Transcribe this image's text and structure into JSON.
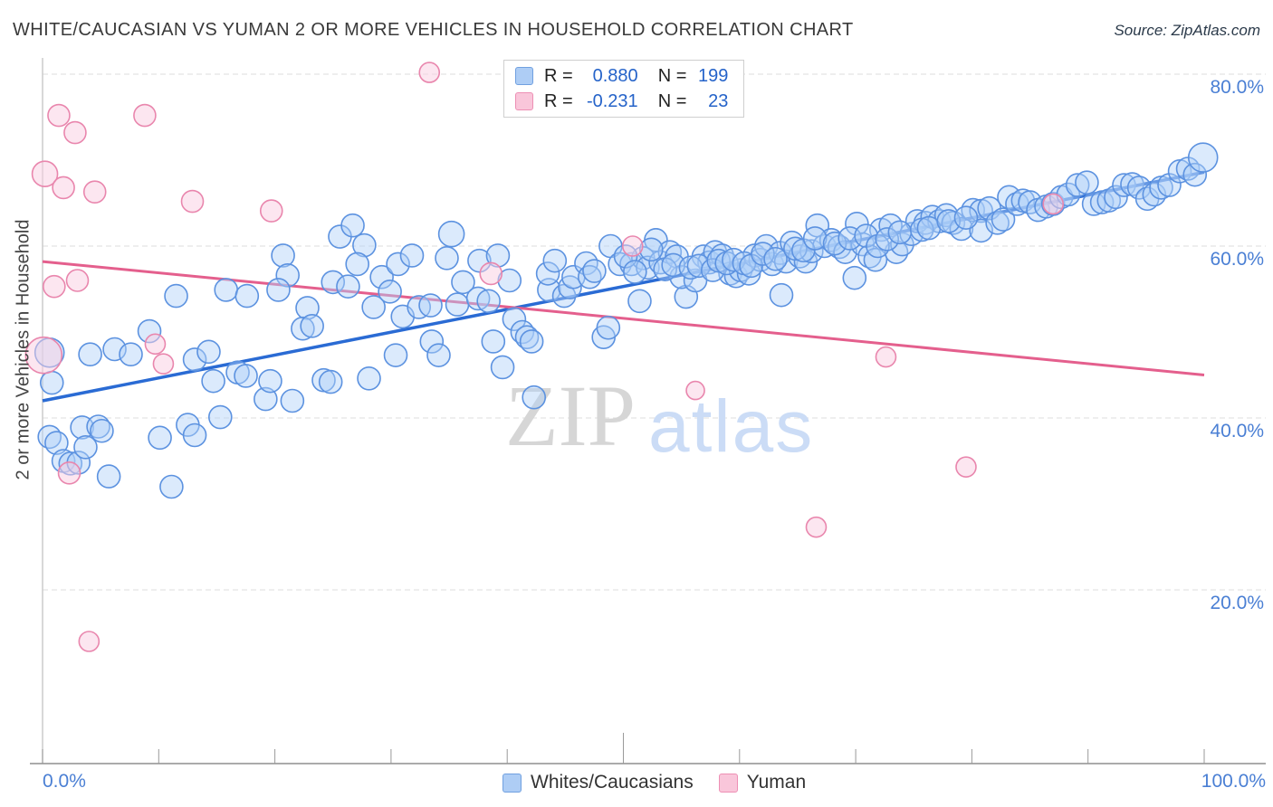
{
  "header": {
    "title": "WHITE/CAUCASIAN VS YUMAN 2 OR MORE VEHICLES IN HOUSEHOLD CORRELATION CHART",
    "source": "Source: ZipAtlas.com"
  },
  "legend_box": {
    "rows": [
      {
        "r_label": "R =",
        "r_value": "0.880",
        "n_label": "N =",
        "n_value": "199"
      },
      {
        "r_label": "R =",
        "r_value": "-0.231",
        "n_label": "N =",
        "n_value": "23"
      }
    ]
  },
  "axes": {
    "y_label": "2 or more Vehicles in Household",
    "y_ticks": [
      {
        "value": 80,
        "label": "80.0%"
      },
      {
        "value": 60,
        "label": "60.0%"
      },
      {
        "value": 40,
        "label": "40.0%"
      },
      {
        "value": 20,
        "label": "20.0%"
      }
    ],
    "x_tick_values": [
      0,
      10,
      20,
      30,
      40,
      50,
      60,
      70,
      80,
      90,
      100
    ],
    "x_left_label": "0.0%",
    "x_right_label": "100.0%"
  },
  "bottom_legend": [
    {
      "label": "Whites/Caucasians",
      "color": "#aecdf5"
    },
    {
      "label": "Yuman",
      "color": "#f9c6da"
    }
  ],
  "watermark": {
    "zip": "ZIP",
    "atlas": "atlas"
  },
  "colors": {
    "tick_label": "#4a7fd4",
    "gridline": "#dedede",
    "axis": "#8f8f8f",
    "blue_fill": "rgba(176,208,248,0.45)",
    "blue_stroke": "#5c92e0",
    "blue_trend": "#2a6bd4",
    "pink_fill": "rgba(250,205,225,0.5)",
    "pink_stroke": "#e986ad",
    "pink_trend": "#e45f8d"
  },
  "chart_data": {
    "type": "scatter",
    "xlabel": "",
    "ylabel": "2 or more Vehicles in Household",
    "xlim": [
      0,
      100
    ],
    "ylim": [
      0,
      100
    ],
    "grid": "horizontal-dashed",
    "series": [
      {
        "name": "Whites/Caucasians",
        "R": 0.88,
        "N": 199,
        "trend": {
          "x0": 0,
          "y0": 42.0,
          "x1": 100,
          "y1": 68.6
        },
        "default_radius": 12.5,
        "points": [
          [
            0.6,
            47.6,
            16
          ],
          [
            0.8,
            44.1
          ],
          [
            4.1,
            47.4
          ],
          [
            6.2,
            48.0
          ],
          [
            7.6,
            47.4
          ],
          [
            13.1,
            46.8
          ],
          [
            14.3,
            47.7
          ],
          [
            14.7,
            44.3
          ],
          [
            16.8,
            45.3
          ],
          [
            17.5,
            44.9
          ],
          [
            19.2,
            42.2
          ],
          [
            19.6,
            44.3
          ],
          [
            21.5,
            42.0
          ],
          [
            24.2,
            44.4
          ],
          [
            0.6,
            37.8
          ],
          [
            1.2,
            37.1
          ],
          [
            3.4,
            38.9
          ],
          [
            4.8,
            39.0
          ],
          [
            5.1,
            38.5
          ],
          [
            1.8,
            35.0
          ],
          [
            2.4,
            34.7
          ],
          [
            3.1,
            34.8
          ],
          [
            3.7,
            36.6
          ],
          [
            5.7,
            33.2
          ],
          [
            11.1,
            32.0
          ],
          [
            12.5,
            39.2
          ],
          [
            13.1,
            38.0
          ],
          [
            10.1,
            37.7
          ],
          [
            20.7,
            58.9
          ],
          [
            21.1,
            56.6
          ],
          [
            11.5,
            54.2
          ],
          [
            15.8,
            54.9
          ],
          [
            17.6,
            54.2
          ],
          [
            20.3,
            54.9
          ],
          [
            22.8,
            52.8
          ],
          [
            22.4,
            50.4
          ],
          [
            23.2,
            50.7
          ],
          [
            9.2,
            50.1
          ],
          [
            15.3,
            40.1
          ],
          [
            25.6,
            61.1
          ],
          [
            26.7,
            62.4
          ],
          [
            27.7,
            60.1
          ],
          [
            27.1,
            57.9
          ],
          [
            29.2,
            56.4
          ],
          [
            30.6,
            57.9
          ],
          [
            31.8,
            58.9
          ],
          [
            25.0,
            55.8
          ],
          [
            26.3,
            55.3
          ],
          [
            28.5,
            52.9
          ],
          [
            29.9,
            54.7
          ],
          [
            31.0,
            51.8
          ],
          [
            32.4,
            52.9
          ],
          [
            33.4,
            53.1
          ],
          [
            35.2,
            61.4,
            14
          ],
          [
            34.8,
            58.6
          ],
          [
            36.2,
            55.8
          ],
          [
            35.7,
            53.2
          ],
          [
            37.5,
            53.9
          ],
          [
            38.4,
            53.6
          ],
          [
            37.6,
            58.3
          ],
          [
            39.2,
            58.9
          ],
          [
            40.2,
            56.0
          ],
          [
            40.6,
            51.5
          ],
          [
            41.3,
            50.0
          ],
          [
            41.7,
            49.4
          ],
          [
            42.1,
            48.9
          ],
          [
            43.6,
            54.9
          ],
          [
            43.5,
            56.8
          ],
          [
            44.1,
            58.3
          ],
          [
            44.9,
            54.2
          ],
          [
            45.4,
            55.2
          ],
          [
            45.7,
            56.4
          ],
          [
            46.8,
            58.0
          ],
          [
            47.1,
            56.4
          ],
          [
            47.5,
            57.1
          ],
          [
            33.5,
            48.9
          ],
          [
            34.1,
            47.3
          ],
          [
            30.4,
            47.3
          ],
          [
            28.1,
            44.6
          ],
          [
            24.8,
            44.2
          ],
          [
            38.8,
            48.9
          ],
          [
            39.6,
            45.9
          ],
          [
            42.3,
            42.4
          ],
          [
            48.9,
            60.0
          ],
          [
            49.7,
            57.9
          ],
          [
            50.7,
            57.9
          ],
          [
            48.3,
            49.4
          ],
          [
            48.7,
            50.5
          ],
          [
            52.8,
            60.7
          ],
          [
            51.7,
            58.6
          ],
          [
            52.1,
            57.5
          ],
          [
            53.2,
            58.1
          ],
          [
            54.0,
            59.3
          ],
          [
            54.6,
            58.8
          ],
          [
            51.4,
            53.6
          ],
          [
            55.4,
            54.1
          ],
          [
            55.0,
            56.4
          ],
          [
            56.2,
            56.0
          ],
          [
            56.9,
            58.8
          ],
          [
            57.4,
            58.1
          ],
          [
            57.9,
            59.3
          ],
          [
            58.5,
            58.9
          ],
          [
            59.2,
            56.8
          ],
          [
            59.7,
            56.5
          ],
          [
            60.1,
            57.2
          ],
          [
            60.8,
            56.8
          ],
          [
            61.3,
            58.9
          ],
          [
            61.8,
            58.4
          ],
          [
            62.3,
            60.0
          ],
          [
            62.8,
            57.9
          ],
          [
            63.5,
            59.2
          ],
          [
            64.0,
            58.2
          ],
          [
            64.5,
            60.4
          ],
          [
            65.2,
            58.8
          ],
          [
            65.7,
            58.2
          ],
          [
            66.2,
            59.4
          ],
          [
            66.7,
            62.4
          ],
          [
            67.3,
            60.0
          ],
          [
            67.9,
            60.7
          ],
          [
            68.6,
            59.9
          ],
          [
            69.1,
            59.3
          ],
          [
            70.1,
            62.6
          ],
          [
            70.6,
            60.2
          ],
          [
            71.2,
            58.8
          ],
          [
            71.7,
            58.4
          ],
          [
            72.2,
            61.9
          ],
          [
            73.0,
            62.4
          ],
          [
            73.5,
            59.3
          ],
          [
            74.0,
            60.2
          ],
          [
            74.8,
            61.4
          ],
          [
            75.3,
            62.9
          ],
          [
            76.0,
            62.7
          ],
          [
            76.6,
            63.4
          ],
          [
            77.2,
            62.9
          ],
          [
            63.6,
            54.3
          ],
          [
            69.9,
            56.3
          ],
          [
            77.8,
            63.6
          ],
          [
            78.4,
            62.7
          ],
          [
            79.1,
            62.0
          ],
          [
            80.1,
            64.2
          ],
          [
            80.8,
            64.1
          ],
          [
            80.8,
            61.8
          ],
          [
            81.5,
            64.4
          ],
          [
            82.2,
            62.7
          ],
          [
            82.7,
            63.1
          ],
          [
            83.2,
            65.7
          ],
          [
            83.9,
            64.9
          ],
          [
            84.4,
            65.3
          ],
          [
            85.0,
            65.1
          ],
          [
            85.7,
            64.2
          ],
          [
            86.4,
            64.6
          ],
          [
            87.0,
            64.9
          ],
          [
            87.7,
            65.7
          ],
          [
            88.3,
            66.0
          ],
          [
            89.1,
            67.1
          ],
          [
            89.9,
            67.4
          ],
          [
            90.5,
            64.9
          ],
          [
            91.2,
            65.1
          ],
          [
            91.8,
            65.3
          ],
          [
            92.4,
            65.7
          ],
          [
            93.1,
            67.1
          ],
          [
            93.8,
            67.2
          ],
          [
            94.4,
            66.8
          ],
          [
            95.1,
            65.5
          ],
          [
            95.7,
            66.0
          ],
          [
            96.3,
            66.8
          ],
          [
            97.0,
            67.1
          ],
          [
            97.9,
            68.7
          ],
          [
            98.6,
            69.0
          ],
          [
            99.2,
            68.3
          ],
          [
            99.9,
            70.3,
            16
          ],
          [
            50.2,
            58.8
          ],
          [
            51.0,
            57.0
          ],
          [
            52.4,
            59.6
          ],
          [
            53.6,
            57.3
          ],
          [
            54.3,
            57.8
          ],
          [
            55.8,
            57.5
          ],
          [
            56.5,
            57.7
          ],
          [
            57.7,
            57.2
          ],
          [
            58.2,
            58.3
          ],
          [
            58.9,
            58.0
          ],
          [
            59.5,
            58.4
          ],
          [
            60.4,
            58.0
          ],
          [
            61.0,
            57.7
          ],
          [
            62.0,
            59.1
          ],
          [
            63.1,
            58.5
          ],
          [
            64.8,
            59.7
          ],
          [
            65.5,
            59.5
          ],
          [
            66.5,
            60.9
          ],
          [
            68.2,
            60.3
          ],
          [
            69.5,
            60.9
          ],
          [
            70.9,
            61.2
          ],
          [
            71.9,
            60.0
          ],
          [
            72.7,
            60.8
          ],
          [
            73.8,
            61.6
          ],
          [
            75.7,
            61.9
          ],
          [
            76.3,
            62.1
          ],
          [
            78.0,
            62.9
          ],
          [
            79.5,
            63.3
          ]
        ]
      },
      {
        "name": "Yuman",
        "R": -0.231,
        "N": 23,
        "trend": {
          "x0": 0,
          "y0": 58.2,
          "x1": 100,
          "y1": 45.0
        },
        "default_radius": 12,
        "points": [
          [
            1.4,
            75.2
          ],
          [
            2.8,
            73.2
          ],
          [
            8.8,
            75.2
          ],
          [
            0.2,
            68.4,
            14
          ],
          [
            1.8,
            66.8
          ],
          [
            4.5,
            66.3
          ],
          [
            12.9,
            65.2
          ],
          [
            19.7,
            64.1
          ],
          [
            33.3,
            80.2,
            11
          ],
          [
            38.6,
            56.8
          ],
          [
            50.8,
            60.0,
            11
          ],
          [
            87.0,
            64.9,
            11
          ],
          [
            1.0,
            55.3
          ],
          [
            3.0,
            56.0
          ],
          [
            0.1,
            47.3,
            20
          ],
          [
            9.7,
            48.6,
            11
          ],
          [
            10.4,
            46.3,
            11
          ],
          [
            2.3,
            33.6
          ],
          [
            4.0,
            14.0,
            11
          ],
          [
            56.2,
            43.2,
            10
          ],
          [
            72.6,
            47.1,
            11
          ],
          [
            66.6,
            27.3,
            11
          ],
          [
            79.5,
            34.3,
            11
          ]
        ]
      }
    ]
  }
}
